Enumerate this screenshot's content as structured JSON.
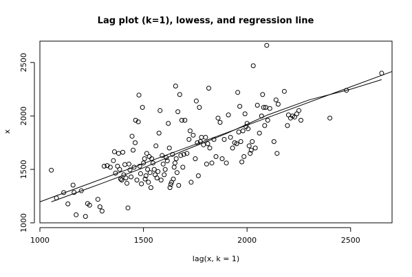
{
  "chart_data": {
    "type": "scatter",
    "title": "Lag plot (k=1), lowess, and regression line",
    "xlabel": "lag(x, k = 1)",
    "ylabel": "x",
    "xlim": [
      1000,
      2700
    ],
    "ylim": [
      1000,
      2700
    ],
    "x_ticks": [
      "1000",
      "1500",
      "2000",
      "2500"
    ],
    "y_ticks": [
      "1000",
      "1500",
      "2000",
      "2500"
    ],
    "grid": false,
    "legend": "none",
    "colors": {
      "points": "#000000",
      "lines": "#000000",
      "background": "#ffffff"
    },
    "series": [
      {
        "type": "scatter",
        "points": [
          [
            1055,
            1493
          ],
          [
            1080,
            1232
          ],
          [
            1115,
            1283
          ],
          [
            1135,
            1177
          ],
          [
            1160,
            1353
          ],
          [
            1165,
            1285
          ],
          [
            1175,
            1075
          ],
          [
            1200,
            1300
          ],
          [
            1220,
            1060
          ],
          [
            1230,
            1180
          ],
          [
            1240,
            1165
          ],
          [
            1280,
            1220
          ],
          [
            1290,
            1150
          ],
          [
            1300,
            1110
          ],
          [
            1310,
            1530
          ],
          [
            1325,
            1535
          ],
          [
            1340,
            1520
          ],
          [
            1355,
            1582
          ],
          [
            1360,
            1665
          ],
          [
            1365,
            1465
          ],
          [
            1375,
            1530
          ],
          [
            1380,
            1650
          ],
          [
            1385,
            1500
          ],
          [
            1390,
            1410
          ],
          [
            1395,
            1400
          ],
          [
            1400,
            1660
          ],
          [
            1405,
            1450
          ],
          [
            1410,
            1545
          ],
          [
            1415,
            1420
          ],
          [
            1420,
            1370
          ],
          [
            1425,
            1140
          ],
          [
            1430,
            1550
          ],
          [
            1435,
            1495
          ],
          [
            1440,
            1430
          ],
          [
            1445,
            1810
          ],
          [
            1450,
            1680
          ],
          [
            1455,
            1520
          ],
          [
            1460,
            1750
          ],
          [
            1462,
            1960
          ],
          [
            1468,
            1400
          ],
          [
            1475,
            1945
          ],
          [
            1478,
            2195
          ],
          [
            1482,
            1530
          ],
          [
            1486,
            1460
          ],
          [
            1490,
            1365
          ],
          [
            1495,
            2080
          ],
          [
            1500,
            1560
          ],
          [
            1505,
            1600
          ],
          [
            1508,
            1410
          ],
          [
            1512,
            1440
          ],
          [
            1516,
            1650
          ],
          [
            1520,
            1500
          ],
          [
            1524,
            1380
          ],
          [
            1528,
            1620
          ],
          [
            1532,
            1470
          ],
          [
            1536,
            1330
          ],
          [
            1540,
            1600
          ],
          [
            1546,
            1560
          ],
          [
            1552,
            1500
          ],
          [
            1556,
            1450
          ],
          [
            1560,
            1720
          ],
          [
            1565,
            1420
          ],
          [
            1570,
            1480
          ],
          [
            1575,
            1840
          ],
          [
            1580,
            2050
          ],
          [
            1585,
            1400
          ],
          [
            1590,
            1630
          ],
          [
            1595,
            1550
          ],
          [
            1600,
            1450
          ],
          [
            1605,
            1500
          ],
          [
            1610,
            1610
          ],
          [
            1615,
            1580
          ],
          [
            1620,
            1930
          ],
          [
            1625,
            1700
          ],
          [
            1628,
            1330
          ],
          [
            1632,
            1360
          ],
          [
            1636,
            1380
          ],
          [
            1640,
            1640
          ],
          [
            1644,
            1410
          ],
          [
            1648,
            1520
          ],
          [
            1652,
            1560
          ],
          [
            1655,
            2280
          ],
          [
            1658,
            1600
          ],
          [
            1662,
            1470
          ],
          [
            1666,
            2040
          ],
          [
            1670,
            1350
          ],
          [
            1675,
            2200
          ],
          [
            1680,
            1630
          ],
          [
            1685,
            1960
          ],
          [
            1690,
            1520
          ],
          [
            1695,
            1640
          ],
          [
            1700,
            1960
          ],
          [
            1710,
            1650
          ],
          [
            1720,
            1780
          ],
          [
            1725,
            1860
          ],
          [
            1730,
            1380
          ],
          [
            1740,
            1820
          ],
          [
            1750,
            1600
          ],
          [
            1755,
            2140
          ],
          [
            1760,
            1750
          ],
          [
            1765,
            1440
          ],
          [
            1770,
            2080
          ],
          [
            1775,
            1760
          ],
          [
            1780,
            1800
          ],
          [
            1790,
            1730
          ],
          [
            1800,
            1800
          ],
          [
            1805,
            1550
          ],
          [
            1810,
            1740
          ],
          [
            1815,
            2260
          ],
          [
            1820,
            1700
          ],
          [
            1830,
            1560
          ],
          [
            1840,
            1780
          ],
          [
            1850,
            1620
          ],
          [
            1860,
            1980
          ],
          [
            1870,
            1940
          ],
          [
            1880,
            1600
          ],
          [
            1890,
            1780
          ],
          [
            1900,
            1560
          ],
          [
            1910,
            2010
          ],
          [
            1920,
            1800
          ],
          [
            1930,
            1700
          ],
          [
            1940,
            1750
          ],
          [
            1950,
            1740
          ],
          [
            1955,
            2220
          ],
          [
            1960,
            1850
          ],
          [
            1965,
            2090
          ],
          [
            1970,
            1760
          ],
          [
            1975,
            1570
          ],
          [
            1980,
            1860
          ],
          [
            1985,
            1620
          ],
          [
            1990,
            2020
          ],
          [
            1995,
            1900
          ],
          [
            2000,
            1930
          ],
          [
            2005,
            1880
          ],
          [
            2010,
            1720
          ],
          [
            2015,
            1650
          ],
          [
            2020,
            1680
          ],
          [
            2025,
            1760
          ],
          [
            2030,
            2470
          ],
          [
            2040,
            1700
          ],
          [
            2050,
            2100
          ],
          [
            2060,
            1840
          ],
          [
            2070,
            2000
          ],
          [
            2075,
            2200
          ],
          [
            2080,
            2080
          ],
          [
            2085,
            1910
          ],
          [
            2090,
            2080
          ],
          [
            2095,
            2660
          ],
          [
            2100,
            1960
          ],
          [
            2110,
            2070
          ],
          [
            2130,
            1760
          ],
          [
            2140,
            2150
          ],
          [
            2145,
            1650
          ],
          [
            2150,
            2110
          ],
          [
            2180,
            2230
          ],
          [
            2195,
            1910
          ],
          [
            2200,
            2010
          ],
          [
            2210,
            1980
          ],
          [
            2220,
            2000
          ],
          [
            2230,
            1990
          ],
          [
            2240,
            2020
          ],
          [
            2250,
            2050
          ],
          [
            2260,
            1960
          ],
          [
            2400,
            1980
          ],
          [
            2480,
            2240
          ],
          [
            2650,
            2400
          ]
        ]
      },
      {
        "type": "line",
        "points": [
          [
            1000,
            1196
          ],
          [
            2700,
            2416
          ]
        ]
      },
      {
        "type": "line",
        "points": [
          [
            1055,
            1196
          ],
          [
            1300,
            1370
          ],
          [
            1500,
            1515
          ],
          [
            1700,
            1680
          ],
          [
            1900,
            1835
          ],
          [
            2100,
            2010
          ],
          [
            2300,
            2150
          ],
          [
            2500,
            2250
          ],
          [
            2650,
            2340
          ]
        ]
      }
    ]
  }
}
